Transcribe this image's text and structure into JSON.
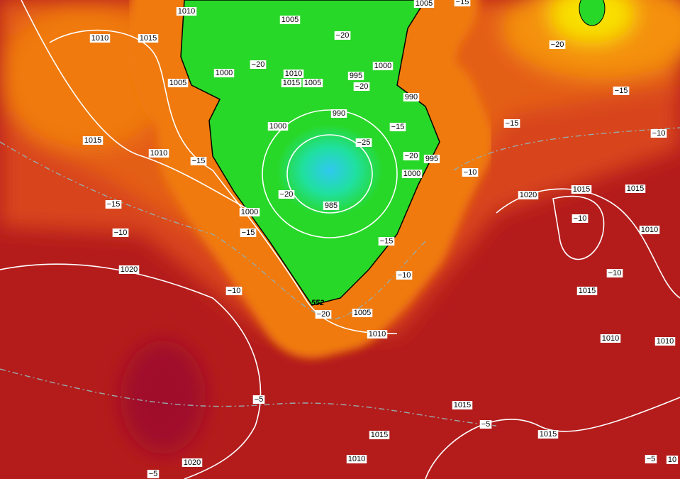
{
  "map": {
    "pressure_labels": [
      "1010",
      "1005",
      "1010",
      "1015",
      "1005",
      "1000",
      "1010",
      "1015",
      "1005",
      "1000",
      "995",
      "1005",
      "990",
      "990",
      "1000",
      "1015",
      "1010",
      "995",
      "1000",
      "985",
      "1000",
      "1020",
      "1015",
      "1015",
      "1010",
      "1020",
      "1015",
      "1005",
      "1010",
      "1010",
      "1010",
      "1015",
      "1015",
      "1015",
      "1010",
      "1020",
      "10"
    ],
    "temperature_labels": [
      "−15",
      "−20",
      "−20",
      "−20",
      "−20",
      "−15",
      "−15",
      "−15",
      "−10",
      "−25",
      "−20",
      "−15",
      "−10",
      "−20",
      "−15",
      "−10",
      "−15",
      "−10",
      "−15",
      "−10",
      "−10",
      "−10",
      "−20",
      "−5",
      "−5",
      "−5",
      "−5"
    ],
    "contour_label": "552"
  }
}
